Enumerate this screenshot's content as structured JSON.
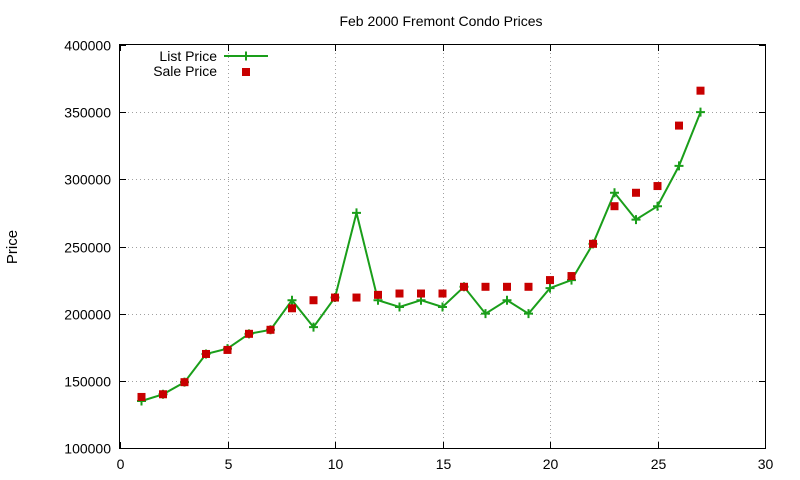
{
  "chart_data": {
    "type": "line",
    "title": "Feb 2000 Fremont Condo Prices",
    "xlabel": "",
    "ylabel": "Price",
    "xlim": [
      0,
      30
    ],
    "ylim": [
      100000,
      400000
    ],
    "xticks": [
      "0",
      "5",
      "10",
      "15",
      "20",
      "25",
      "30"
    ],
    "yticks": [
      "100000",
      "150000",
      "200000",
      "250000",
      "300000",
      "350000",
      "400000"
    ],
    "grid": true,
    "legend_position": "top-left",
    "series": [
      {
        "name": "List Price",
        "style": "linespoints",
        "marker": "plus",
        "color": "#1a9e1a",
        "x": [
          1,
          2,
          3,
          4,
          5,
          6,
          7,
          8,
          9,
          10,
          11,
          12,
          13,
          14,
          15,
          16,
          17,
          18,
          19,
          20,
          21,
          22,
          23,
          24,
          25,
          26,
          27
        ],
        "y": [
          135000,
          140000,
          149000,
          170000,
          174000,
          185000,
          188000,
          210000,
          190000,
          212000,
          275000,
          210000,
          205000,
          210000,
          205000,
          220000,
          200000,
          210000,
          200000,
          219000,
          225000,
          252000,
          290000,
          270000,
          280000,
          310000,
          350000
        ]
      },
      {
        "name": "Sale Price",
        "style": "points",
        "marker": "square",
        "color": "#c80000",
        "x": [
          1,
          2,
          3,
          4,
          5,
          6,
          7,
          8,
          9,
          10,
          11,
          12,
          13,
          14,
          15,
          16,
          17,
          18,
          19,
          20,
          21,
          22,
          23,
          24,
          25,
          26,
          27
        ],
        "y": [
          138000,
          140000,
          149000,
          170000,
          173000,
          185000,
          188000,
          204000,
          210000,
          212000,
          212000,
          214000,
          215000,
          215000,
          215000,
          220000,
          220000,
          220000,
          220000,
          225000,
          228000,
          252000,
          280000,
          290000,
          295000,
          340000,
          366000
        ]
      }
    ]
  }
}
